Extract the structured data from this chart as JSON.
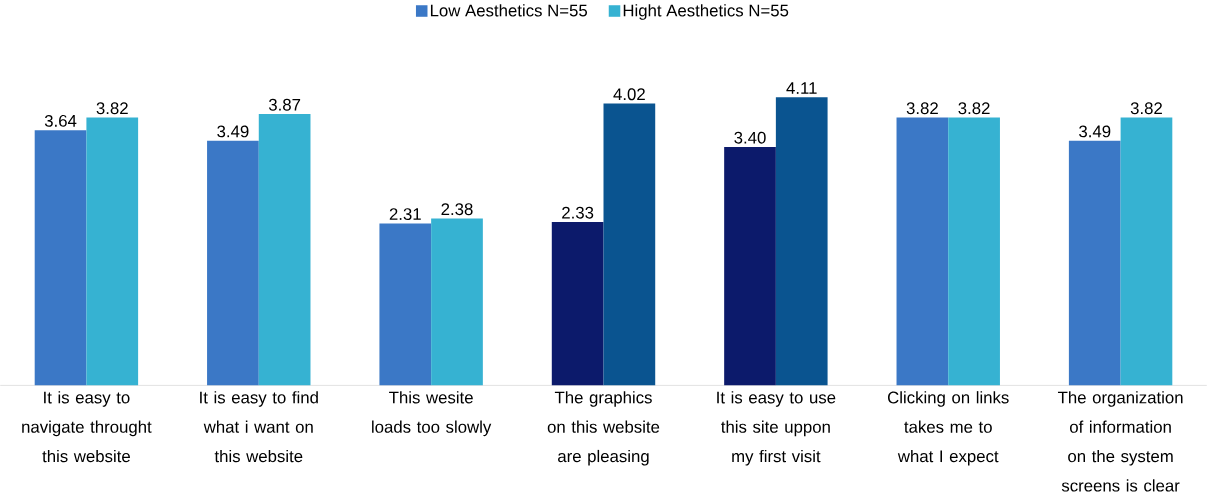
{
  "chart_data": {
    "type": "bar",
    "categories": [
      "It is easy to navigate throught this website",
      "It is easy to find what i want on this website",
      "This wesite loads too slowly",
      "The graphics on this website are pleasing",
      "It is easy to use this site uppon my first visit",
      "Clicking on links takes me to what I expect",
      "The organization of information on the system screens is clear"
    ],
    "series": [
      {
        "name": "Low Aesthetics N=55",
        "color": "#3b78c6",
        "colors": [
          "#3b78c6",
          "#3b78c6",
          "#3b78c6",
          "#0c1a6b",
          "#0c1a6b",
          "#3b78c6",
          "#3b78c6"
        ],
        "values": [
          3.64,
          3.49,
          2.31,
          2.33,
          3.4,
          3.82,
          3.49
        ],
        "value_labels": [
          "3.64",
          "3.49",
          "2.31",
          "2.33",
          "3.40",
          "3.82",
          "3.49"
        ]
      },
      {
        "name": "Hight Aesthetics N=55",
        "color": "#36b2d2",
        "colors": [
          "#36b2d2",
          "#36b2d2",
          "#36b2d2",
          "#0a5490",
          "#0a5490",
          "#36b2d2",
          "#36b2d2"
        ],
        "values": [
          3.82,
          3.87,
          2.38,
          4.02,
          4.11,
          3.82,
          3.82
        ],
        "value_labels": [
          "3.82",
          "3.87",
          "2.38",
          "4.02",
          "4.11",
          "3.82",
          "3.82"
        ]
      }
    ],
    "legend": "top"
  }
}
